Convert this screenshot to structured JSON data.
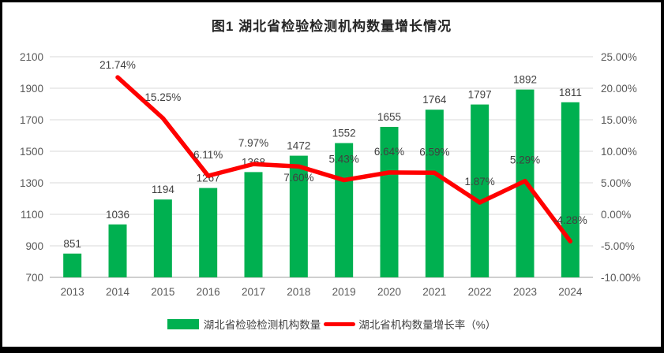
{
  "chart_data": {
    "type": "bar+line",
    "title": "图1 湖北省检验检测机构数量增长情况",
    "categories": [
      "2013",
      "2014",
      "2015",
      "2016",
      "2017",
      "2018",
      "2019",
      "2020",
      "2021",
      "2022",
      "2023",
      "2024"
    ],
    "series": [
      {
        "name": "湖北省检验检测机构数量",
        "type": "bar",
        "axis": "left",
        "color": "#00B050",
        "values": [
          851,
          1036,
          1194,
          1267,
          1368,
          1472,
          1552,
          1655,
          1764,
          1797,
          1892,
          1811
        ],
        "labels": [
          "851",
          "1036",
          "1194",
          "1267",
          "1368",
          "1472",
          "1552",
          "1655",
          "1764",
          "1797",
          "1892",
          "1811"
        ]
      },
      {
        "name": "湖北省机构数量增长率（%）",
        "type": "line",
        "axis": "right",
        "color": "#FF0000",
        "values": [
          null,
          21.74,
          15.25,
          6.11,
          7.97,
          7.6,
          5.43,
          6.64,
          6.59,
          1.87,
          5.29,
          -4.28
        ],
        "labels": [
          null,
          "21.74%",
          "15.25%",
          "6.11%",
          "7.97%",
          "7.60%",
          "5.43%",
          "6.64%",
          "6.59%",
          "1.87%",
          "5.29%",
          "-4.28%"
        ]
      }
    ],
    "left_axis": {
      "min": 700,
      "max": 2100,
      "step": 200,
      "ticks": [
        "2100",
        "1900",
        "1700",
        "1500",
        "1300",
        "1100",
        "900",
        "700"
      ]
    },
    "right_axis": {
      "min": -10,
      "max": 25,
      "step": 5,
      "ticks": [
        "25.00%",
        "20.00%",
        "15.00%",
        "10.00%",
        "5.00%",
        "0.00%",
        "-5.00%",
        "-10.00%"
      ]
    },
    "grid": true,
    "legend_position": "bottom",
    "colors": {
      "bar": "#00B050",
      "line": "#FF0000",
      "gridline": "#D9D9D9",
      "axis_line": "#BFBFBF",
      "tick_text": "#595959",
      "data_label_text": "#404040",
      "title_text": "#262626",
      "frame_border": "#000000",
      "background": "#FFFFFF"
    }
  },
  "legend": [
    {
      "label": "湖北省检验检测机构数量"
    },
    {
      "label": "湖北省机构数量增长率（%）"
    }
  ]
}
